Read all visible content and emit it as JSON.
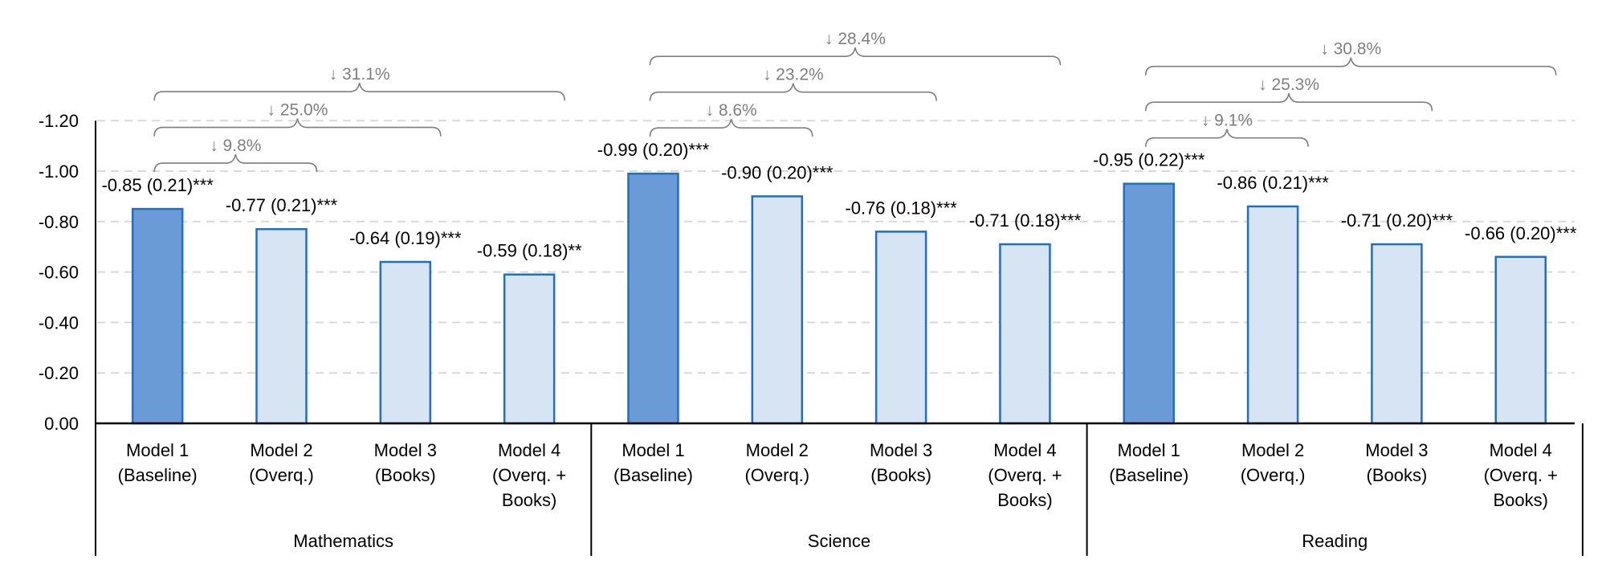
{
  "chart_data": {
    "type": "bar",
    "title": "",
    "xlabel": "",
    "ylabel": "",
    "ylim": [
      0,
      -1.2
    ],
    "y_ticks": [
      "0.00",
      "-0.20",
      "-0.40",
      "-0.60",
      "-0.80",
      "-1.00",
      "-1.20"
    ],
    "y_tick_values": [
      0,
      -0.2,
      -0.4,
      -0.6,
      -0.8,
      -1.0,
      -1.2
    ],
    "grid": true,
    "colors": {
      "baseline_fill": "#6A9BD6",
      "model_fill": "#D6E4F4",
      "bar_stroke": "#1F6FC6",
      "bracket": "#7F7F7F",
      "grid": "#D9D9D9"
    },
    "groups": [
      {
        "name": "Mathematics",
        "categories": [
          [
            "Model 1",
            "(Baseline)"
          ],
          [
            "Model 2",
            "(Overq.)"
          ],
          [
            "Model 3",
            "(Books)"
          ],
          [
            "Model 4",
            "(Overq. +",
            "Books)"
          ]
        ],
        "values": [
          -0.85,
          -0.77,
          -0.64,
          -0.59
        ],
        "labels": [
          "-0.85 (0.21)***",
          "-0.77 (0.21)***",
          "-0.64 (0.19)***",
          "-0.59 (0.18)**"
        ],
        "reductions": [
          {
            "from": 0,
            "to": 1,
            "label": "↓ 9.8%"
          },
          {
            "from": 0,
            "to": 2,
            "label": "↓ 25.0%"
          },
          {
            "from": 0,
            "to": 3,
            "label": "↓ 31.1%"
          }
        ]
      },
      {
        "name": "Science",
        "categories": [
          [
            "Model 1",
            "(Baseline)"
          ],
          [
            "Model 2",
            "(Overq.)"
          ],
          [
            "Model 3",
            "(Books)"
          ],
          [
            "Model 4",
            "(Overq. +",
            "Books)"
          ]
        ],
        "values": [
          -0.99,
          -0.9,
          -0.76,
          -0.71
        ],
        "labels": [
          "-0.99 (0.20)***",
          "-0.90 (0.20)***",
          "-0.76 (0.18)***",
          "-0.71 (0.18)***"
        ],
        "reductions": [
          {
            "from": 0,
            "to": 1,
            "label": "↓ 8.6%"
          },
          {
            "from": 0,
            "to": 2,
            "label": "↓ 23.2%"
          },
          {
            "from": 0,
            "to": 3,
            "label": "↓ 28.4%"
          }
        ]
      },
      {
        "name": "Reading",
        "categories": [
          [
            "Model 1",
            "(Baseline)"
          ],
          [
            "Model 2",
            "(Overq.)"
          ],
          [
            "Model 3",
            "(Books)"
          ],
          [
            "Model 4",
            "(Overq. +",
            "Books)"
          ]
        ],
        "values": [
          -0.95,
          -0.86,
          -0.71,
          -0.66
        ],
        "labels": [
          "-0.95 (0.22)***",
          "-0.86 (0.21)***",
          "-0.71 (0.20)***",
          "-0.66 (0.20)***"
        ],
        "reductions": [
          {
            "from": 0,
            "to": 1,
            "label": "↓ 9.1%"
          },
          {
            "from": 0,
            "to": 2,
            "label": "↓ 25.3%"
          },
          {
            "from": 0,
            "to": 3,
            "label": "↓ 30.8%"
          }
        ]
      }
    ]
  }
}
